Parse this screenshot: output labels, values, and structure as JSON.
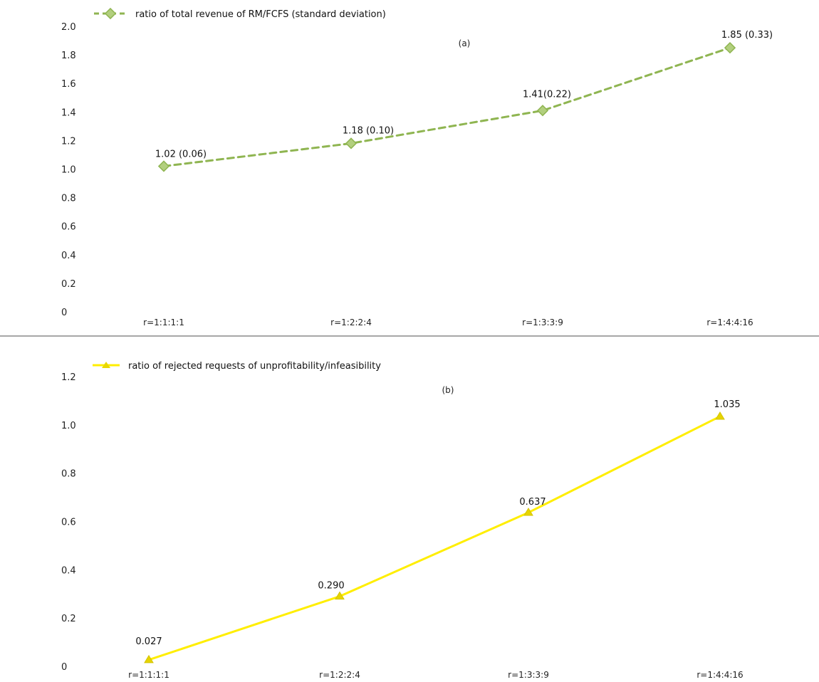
{
  "chart_data": [
    {
      "type": "line",
      "panel_label": "(a)",
      "categories": [
        "r=1:1:1:1",
        "r=1:2:2:4",
        "r=1:3:3:9",
        "r=1:4:4:16"
      ],
      "series": [
        {
          "name": "ratio of total revenue of RM/FCFS (standard deviation)",
          "values": [
            1.02,
            1.18,
            1.41,
            1.85
          ],
          "color": "#8fb551",
          "line_style": "dashed",
          "marker": "diamond"
        }
      ],
      "data_labels": [
        "1.02 (0.06)",
        "1.18 (0.10)",
        "1.41(0.22)",
        "1.85 (0.33)"
      ],
      "ylim": [
        0,
        2.0
      ],
      "yticks": [
        "0",
        "0.2",
        "0.4",
        "0.6",
        "0.8",
        "1.0",
        "1.2",
        "1.4",
        "1.6",
        "1.8",
        "2.0"
      ],
      "legend_position": "top-left",
      "grid": false
    },
    {
      "type": "line",
      "panel_label": "(b)",
      "categories": [
        "r=1:1:1:1",
        "r=1:2:2:4",
        "r=1:3:3:9",
        "r=1:4:4:16"
      ],
      "series": [
        {
          "name": "ratio of rejected requests of unprofitability/infeasibility",
          "values": [
            0.027,
            0.29,
            0.637,
            1.035
          ],
          "color": "#ffee00",
          "line_style": "solid",
          "marker": "triangle"
        }
      ],
      "data_labels": [
        "0.027",
        "0.290",
        "0.637",
        "1.035"
      ],
      "ylim": [
        0,
        1.2
      ],
      "yticks": [
        "0",
        "0.2",
        "0.4",
        "0.6",
        "0.8",
        "1.0",
        "1.2"
      ],
      "legend_position": "top-left",
      "grid": false
    }
  ]
}
